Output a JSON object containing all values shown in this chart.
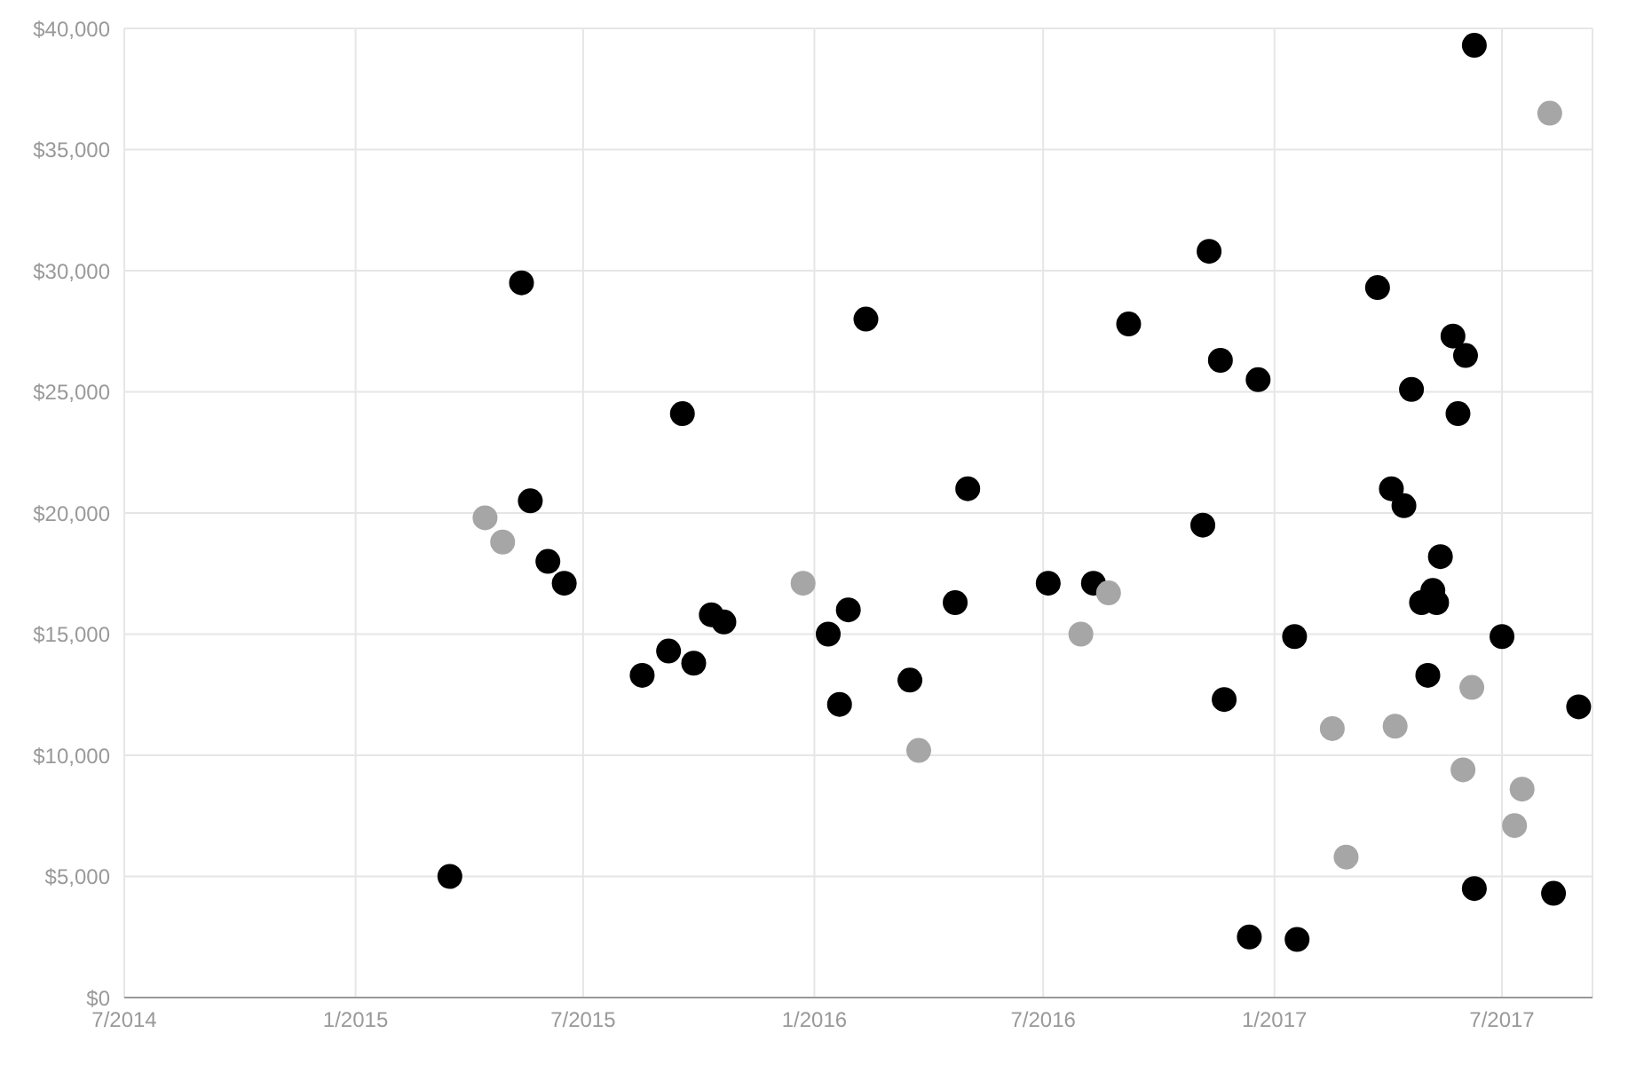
{
  "chart_data": {
    "type": "scatter",
    "marker": "circle",
    "grid": true,
    "xlim": [
      "2014-07-01",
      "2017-09-11"
    ],
    "xticks": [
      {
        "value": "2014-07-01",
        "label": "7/2014"
      },
      {
        "value": "2015-01-01",
        "label": "1/2015"
      },
      {
        "value": "2015-07-01",
        "label": "7/2015"
      },
      {
        "value": "2016-01-01",
        "label": "1/2016"
      },
      {
        "value": "2016-07-01",
        "label": "7/2016"
      },
      {
        "value": "2017-01-01",
        "label": "1/2017"
      },
      {
        "value": "2017-07-01",
        "label": "7/2017"
      }
    ],
    "ylim": [
      0,
      40000
    ],
    "yticks": [
      {
        "value": 0,
        "label": "$0"
      },
      {
        "value": 5000,
        "label": "$5,000"
      },
      {
        "value": 10000,
        "label": "$10,000"
      },
      {
        "value": 15000,
        "label": "$15,000"
      },
      {
        "value": 20000,
        "label": "$20,000"
      },
      {
        "value": 25000,
        "label": "$25,000"
      },
      {
        "value": 30000,
        "label": "$30,000"
      },
      {
        "value": 35000,
        "label": "$35,000"
      },
      {
        "value": 40000,
        "label": "$40,000"
      }
    ],
    "series": [
      {
        "color": "#000000",
        "x": [
          "2015-03-17",
          "2015-05-13",
          "2015-05-20",
          "2015-06-03",
          "2015-06-16",
          "2015-08-17",
          "2015-09-07",
          "2015-09-18",
          "2015-09-27",
          "2015-10-11",
          "2015-10-21",
          "2016-01-12",
          "2016-01-21",
          "2016-01-28",
          "2016-02-11",
          "2016-03-17",
          "2016-04-22",
          "2016-05-02",
          "2016-07-05",
          "2016-08-10",
          "2016-09-07",
          "2016-11-05",
          "2016-11-10",
          "2016-11-19",
          "2016-11-22",
          "2016-12-12",
          "2016-12-19",
          "2017-01-17",
          "2017-01-19",
          "2017-03-24",
          "2017-04-04",
          "2017-04-14",
          "2017-04-20",
          "2017-04-28",
          "2017-05-03",
          "2017-05-07",
          "2017-05-10",
          "2017-05-13",
          "2017-05-23",
          "2017-05-27",
          "2017-06-02",
          "2017-06-09",
          "2017-06-09",
          "2017-07-01",
          "2017-08-11",
          "2017-08-31"
        ],
        "values": [
          5000,
          29500,
          20500,
          18000,
          17100,
          13300,
          14300,
          24100,
          13800,
          15800,
          15500,
          15000,
          12100,
          16000,
          28000,
          13100,
          16300,
          21000,
          17100,
          17100,
          27800,
          19500,
          30800,
          26300,
          12300,
          2500,
          25500,
          14900,
          2400,
          29300,
          21000,
          20300,
          25100,
          16300,
          13300,
          16800,
          16300,
          18200,
          27300,
          24100,
          26500,
          39300,
          4500,
          14900,
          4300,
          12000
        ]
      },
      {
        "color": "#a6a6a6",
        "x": [
          "2015-04-14",
          "2015-04-28",
          "2015-12-23",
          "2016-03-24",
          "2016-07-31",
          "2016-08-22",
          "2017-02-16",
          "2017-02-27",
          "2017-04-07",
          "2017-05-31",
          "2017-06-07",
          "2017-07-11",
          "2017-07-17",
          "2017-08-08"
        ],
        "values": [
          19800,
          18800,
          17100,
          10200,
          15000,
          16700,
          11100,
          5800,
          11200,
          9400,
          12800,
          7100,
          8600,
          36500
        ]
      }
    ]
  }
}
